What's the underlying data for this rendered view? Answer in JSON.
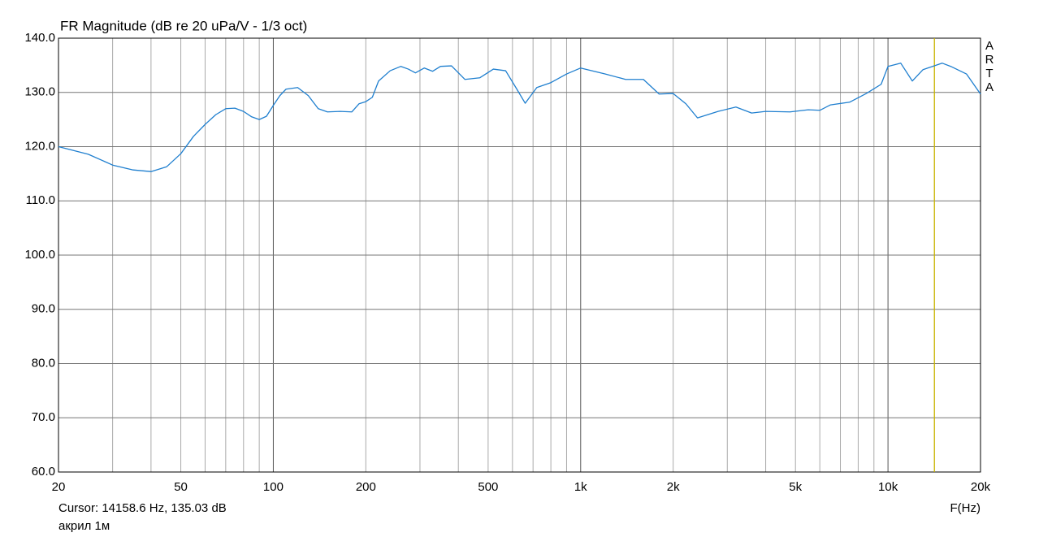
{
  "chart_data": {
    "type": "line",
    "title": "FR Magnitude (dB re 20 uPa/V - 1/3 oct)",
    "xlabel": "F(Hz)",
    "xscale": "log",
    "xlim": [
      20,
      20000
    ],
    "ylim": [
      60,
      140
    ],
    "xticks": [
      20,
      50,
      100,
      200,
      500,
      {
        "value": 1000,
        "label": "1k"
      },
      {
        "value": 2000,
        "label": "2k"
      },
      {
        "value": 5000,
        "label": "5k"
      },
      {
        "value": 10000,
        "label": "10k"
      },
      {
        "value": 20000,
        "label": "20k"
      }
    ],
    "xgrid": [
      20,
      30,
      40,
      50,
      60,
      70,
      80,
      90,
      100,
      200,
      300,
      400,
      500,
      600,
      700,
      800,
      900,
      1000,
      2000,
      3000,
      4000,
      5000,
      6000,
      7000,
      8000,
      9000,
      10000,
      20000
    ],
    "yticks": [
      {
        "value": 60,
        "label": "60.0"
      },
      {
        "value": 70,
        "label": "70.0"
      },
      {
        "value": 80,
        "label": "80.0"
      },
      {
        "value": 90,
        "label": "90.0"
      },
      {
        "value": 100,
        "label": "100.0"
      },
      {
        "value": 110,
        "label": "110.0"
      },
      {
        "value": 120,
        "label": "120.0"
      },
      {
        "value": 130,
        "label": "130.0"
      },
      {
        "value": 140,
        "label": "140.0"
      }
    ],
    "grid": true,
    "watermark": [
      "A",
      "R",
      "T",
      "A"
    ],
    "cursor": {
      "text": "Cursor: 14158.6 Hz, 135.03 dB",
      "freq": 14158.6,
      "color": "#c8b400"
    },
    "series": [
      {
        "name": "акрил 1м",
        "color": "#1f7fcf",
        "x": [
          20,
          25,
          30,
          35,
          40,
          45,
          50,
          55,
          60,
          65,
          70,
          75,
          80,
          85,
          90,
          95,
          100,
          105,
          110,
          120,
          130,
          140,
          150,
          165,
          180,
          190,
          200,
          210,
          220,
          240,
          260,
          275,
          290,
          310,
          330,
          350,
          380,
          420,
          470,
          520,
          570,
          620,
          660,
          720,
          800,
          900,
          1000,
          1200,
          1400,
          1600,
          1800,
          2000,
          2200,
          2400,
          2800,
          3200,
          3600,
          4000,
          4800,
          5500,
          6000,
          6500,
          7500,
          8500,
          9500,
          10000,
          11000,
          12000,
          13000,
          15000,
          16000,
          18000,
          20000
        ],
        "values": [
          120.0,
          118.6,
          116.6,
          115.7,
          115.4,
          116.3,
          118.7,
          121.9,
          124.1,
          125.9,
          127.0,
          127.1,
          126.5,
          125.5,
          125.0,
          125.6,
          127.6,
          129.4,
          130.6,
          130.9,
          129.4,
          127.0,
          126.4,
          126.5,
          126.4,
          127.9,
          128.3,
          129.1,
          132.1,
          134.0,
          134.8,
          134.3,
          133.6,
          134.5,
          133.9,
          134.8,
          134.9,
          132.4,
          132.7,
          134.3,
          134.0,
          130.6,
          128.0,
          130.9,
          131.8,
          133.4,
          134.5,
          133.4,
          132.4,
          132.4,
          129.7,
          129.8,
          127.9,
          125.3,
          126.5,
          127.3,
          126.2,
          126.5,
          126.4,
          126.8,
          126.7,
          127.7,
          128.2,
          129.8,
          131.5,
          134.8,
          135.4,
          132.1,
          134.2,
          135.4,
          134.8,
          133.4,
          129.7
        ]
      }
    ]
  }
}
